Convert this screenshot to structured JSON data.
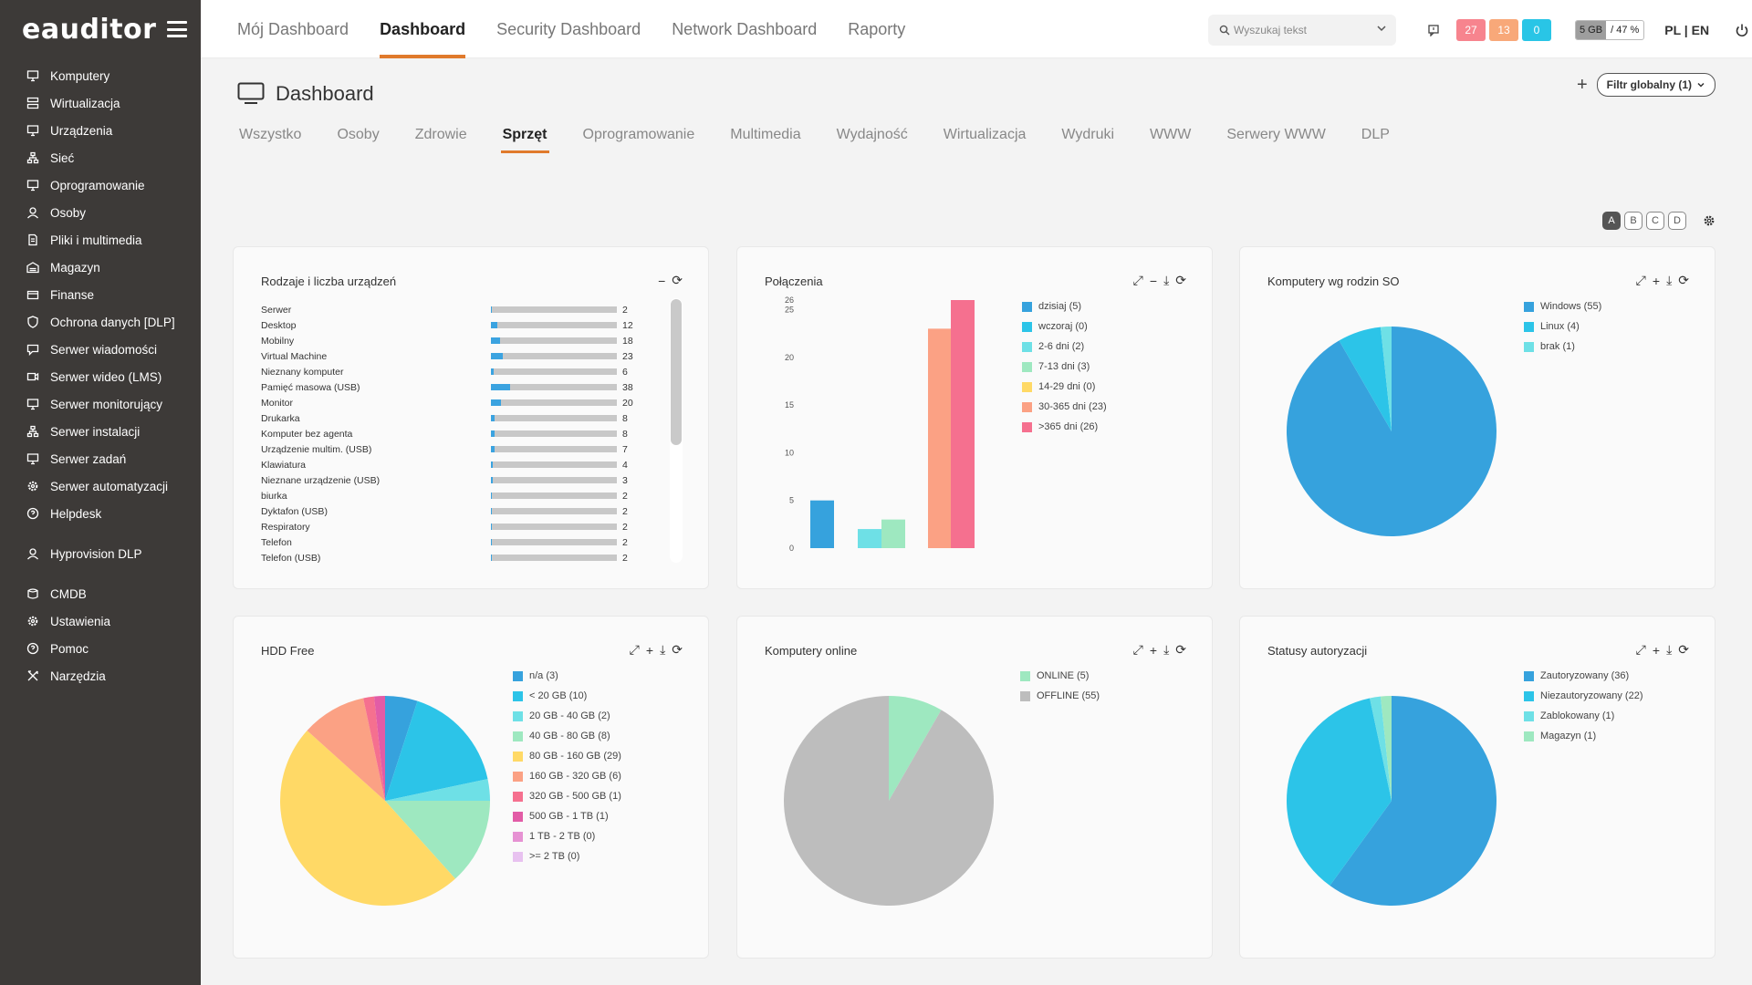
{
  "sidebar": {
    "logo": "eauditor",
    "items": [
      {
        "label": "Komputery",
        "icon": "desktop-icon"
      },
      {
        "label": "Wirtualizacja",
        "icon": "server-stack-icon"
      },
      {
        "label": "Urządzenia",
        "icon": "devices-icon"
      },
      {
        "label": "Sieć",
        "icon": "network-icon"
      },
      {
        "label": "Oprogramowanie",
        "icon": "monitor-icon"
      },
      {
        "label": "Osoby",
        "icon": "users-icon"
      },
      {
        "label": "Pliki i multimedia",
        "icon": "file-icon"
      },
      {
        "label": "Magazyn",
        "icon": "warehouse-icon"
      },
      {
        "label": "Finanse",
        "icon": "wallet-icon"
      },
      {
        "label": "Ochrona danych [DLP]",
        "icon": "shield-icon"
      },
      {
        "label": "Serwer wiadomości",
        "icon": "message-icon"
      },
      {
        "label": "Serwer wideo (LMS)",
        "icon": "video-icon"
      },
      {
        "label": "Serwer monitorujący",
        "icon": "chart-monitor-icon"
      },
      {
        "label": "Serwer instalacji",
        "icon": "network-icon"
      },
      {
        "label": "Serwer zadań",
        "icon": "tasks-icon"
      },
      {
        "label": "Serwer automatyzacji",
        "icon": "gear-icon"
      },
      {
        "label": "Helpdesk",
        "icon": "helpdesk-icon"
      }
    ],
    "items2": [
      {
        "label": "Hyprovision DLP",
        "icon": "user-key-icon"
      }
    ],
    "items3": [
      {
        "label": "CMDB",
        "icon": "database-icon"
      },
      {
        "label": "Ustawienia",
        "icon": "gear-icon"
      },
      {
        "label": "Pomoc",
        "icon": "help-icon"
      },
      {
        "label": "Narzędzia",
        "icon": "tools-icon"
      }
    ]
  },
  "topnav": {
    "tabs": [
      "Mój Dashboard",
      "Dashboard",
      "Security Dashboard",
      "Network Dashboard",
      "Raporty"
    ],
    "active": "Dashboard"
  },
  "search": {
    "placeholder": "Wyszukaj tekst"
  },
  "badges": [
    {
      "value": "27",
      "color": "#f7848e"
    },
    {
      "value": "13",
      "color": "#f8a879"
    },
    {
      "value": "0",
      "color": "#29c5e6"
    }
  ],
  "disk": {
    "used": "5 GB",
    "percent": "47 %"
  },
  "lang": {
    "pl": "PL",
    "sep": " | ",
    "en": "EN"
  },
  "page": {
    "title": "Dashboard",
    "filter_label": "Filtr globalny (1)"
  },
  "subtabs": [
    "Wszystko",
    "Osoby",
    "Zdrowie",
    "Sprzęt",
    "Oprogramowanie",
    "Multimedia",
    "Wydajność",
    "Wirtualizacja",
    "Wydruki",
    "WWW",
    "Serwery WWW",
    "DLP"
  ],
  "subtabs_active": "Sprzęt",
  "layouts": [
    "A",
    "B",
    "C",
    "D"
  ],
  "cards": {
    "devices": {
      "title": "Rodzaje i liczba urządzeń"
    },
    "connections": {
      "title": "Połączenia"
    },
    "os": {
      "title": "Komputery wg rodzin SO"
    },
    "hdd": {
      "title": "HDD Free"
    },
    "online": {
      "title": "Komputery online"
    },
    "auth": {
      "title": "Statusy autoryzacji"
    }
  },
  "devices": [
    {
      "name": "Serwer",
      "value": 2
    },
    {
      "name": "Desktop",
      "value": 12
    },
    {
      "name": "Mobilny",
      "value": 18
    },
    {
      "name": "Virtual Machine",
      "value": 23
    },
    {
      "name": "Nieznany komputer",
      "value": 6
    },
    {
      "name": "Pamięć masowa (USB)",
      "value": 38
    },
    {
      "name": "Monitor",
      "value": 20
    },
    {
      "name": "Drukarka",
      "value": 8
    },
    {
      "name": "Komputer bez agenta",
      "value": 8
    },
    {
      "name": "Urządzenie multim. (USB)",
      "value": 7
    },
    {
      "name": "Klawiatura",
      "value": 4
    },
    {
      "name": "Nieznane urządzenie (USB)",
      "value": 3
    },
    {
      "name": "biurka",
      "value": 2
    },
    {
      "name": "Dyktafon (USB)",
      "value": 2
    },
    {
      "name": "Respiratory",
      "value": 2
    },
    {
      "name": "Telefon",
      "value": 2
    },
    {
      "name": "Telefon (USB)",
      "value": 2
    }
  ],
  "chart_data": [
    {
      "type": "bar",
      "title": "Połączenia",
      "categories": [
        "dzisiaj (5)",
        "wczoraj (0)",
        "2-6 dni (2)",
        "7-13 dni (3)",
        "14-29 dni (0)",
        "30-365 dni (23)",
        ">365 dni (26)"
      ],
      "values": [
        5,
        0,
        2,
        3,
        0,
        23,
        26
      ],
      "colors": [
        "#36a2dd",
        "#2cc4e8",
        "#6ee0e6",
        "#9ee8c0",
        "#ffd966",
        "#fba184",
        "#f5708f"
      ],
      "yticks": [
        0,
        5,
        10,
        15,
        20,
        25,
        26
      ],
      "ylim": [
        0,
        26
      ],
      "legend": "right"
    },
    {
      "type": "pie",
      "title": "Komputery wg rodzin SO",
      "labels": [
        "Windows (55)",
        "Linux (4)",
        "brak (1)"
      ],
      "values": [
        55,
        4,
        1
      ],
      "colors": [
        "#36a2dd",
        "#2cc4e8",
        "#6ee0e6"
      ],
      "legend": "right"
    },
    {
      "type": "pie",
      "title": "HDD Free",
      "labels": [
        "n/a (3)",
        "< 20 GB (10)",
        "20 GB - 40 GB (2)",
        "40 GB - 80 GB (8)",
        "80 GB - 160 GB (29)",
        "160 GB - 320 GB (6)",
        "320 GB - 500 GB (1)",
        "500 GB - 1 TB (1)",
        "1 TB - 2 TB (0)",
        ">= 2 TB (0)"
      ],
      "values": [
        3,
        10,
        2,
        8,
        29,
        6,
        1,
        1,
        0,
        0
      ],
      "colors": [
        "#36a2dd",
        "#2cc4e8",
        "#6ee0e6",
        "#9ee8c0",
        "#ffd966",
        "#fba184",
        "#f5708f",
        "#e25ca6",
        "#e692d3",
        "#e8c2f0"
      ],
      "legend": "right"
    },
    {
      "type": "pie",
      "title": "Komputery online",
      "labels": [
        "ONLINE (5)",
        "OFFLINE (55)"
      ],
      "values": [
        5,
        55
      ],
      "colors": [
        "#9ee8c0",
        "#bdbdbd"
      ],
      "legend": "right"
    },
    {
      "type": "pie",
      "title": "Statusy autoryzacji",
      "labels": [
        "Zautoryzowany (36)",
        "Niezautoryzowany (22)",
        "Zablokowany (1)",
        "Magazyn (1)"
      ],
      "values": [
        36,
        22,
        1,
        1
      ],
      "colors": [
        "#36a2dd",
        "#2cc4e8",
        "#6ee0e6",
        "#9ee8c0"
      ],
      "legend": "right"
    }
  ]
}
